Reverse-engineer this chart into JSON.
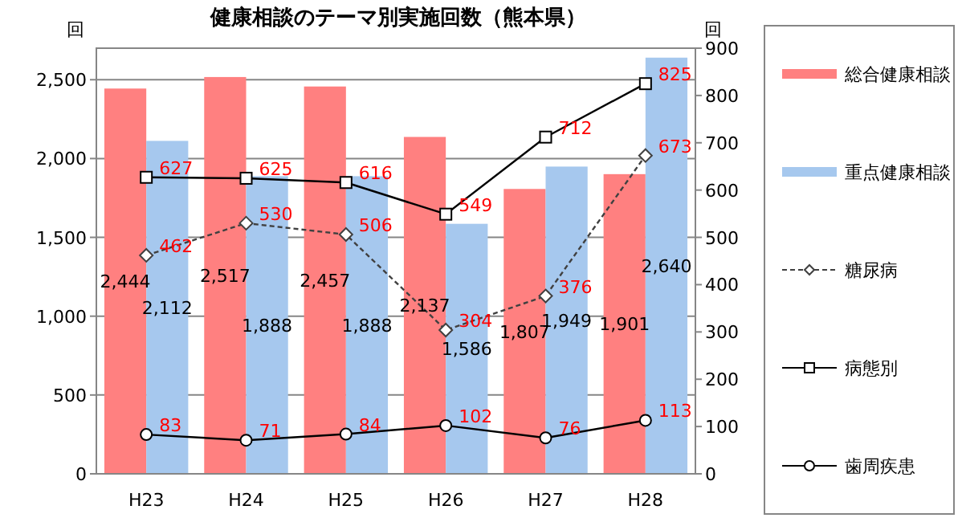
{
  "chart_data": {
    "type": "bar",
    "title": "健康相談のテーマ別実施回数（熊本県）",
    "ylabel": "回",
    "y2label": "回",
    "categories": [
      "H23",
      "H24",
      "H25",
      "H26",
      "H27",
      "H28"
    ],
    "series": [
      {
        "name": "総合健康相談",
        "color": "#ff8080",
        "values": [
          2444,
          2517,
          2457,
          2137,
          1807,
          1901
        ],
        "value_labels": [
          "2,444",
          "2,517",
          "2,457",
          "2,137",
          "1,807",
          "1,901"
        ]
      },
      {
        "name": "重点健康相談",
        "color": "#a6c8ee",
        "values": [
          2112,
          1888,
          1888,
          1586,
          1949,
          2640
        ],
        "value_labels": [
          "2,112",
          "1,888",
          "1,888",
          "1,586",
          "1,949",
          "2,640"
        ]
      },
      {
        "name": "糖尿病",
        "type": "line",
        "axis": "y2",
        "color": "#404040",
        "marker": "diamond",
        "line_style": "dashed",
        "values": [
          462,
          530,
          506,
          304,
          376,
          673
        ]
      },
      {
        "name": "病態別",
        "type": "line",
        "axis": "y2",
        "color": "#000000",
        "marker": "square",
        "line_style": "solid",
        "values": [
          627,
          625,
          616,
          549,
          712,
          825
        ]
      },
      {
        "name": "歯周疾患",
        "type": "line",
        "axis": "y2",
        "color": "#000000",
        "marker": "circle",
        "line_style": "solid",
        "values": [
          83,
          71,
          84,
          102,
          76,
          113
        ]
      }
    ],
    "ylim": [
      0,
      2700
    ],
    "yticks": [
      {
        "value": 0,
        "label": "0"
      },
      {
        "value": 500,
        "label": "500"
      },
      {
        "value": 1000,
        "label": "1,000"
      },
      {
        "value": 1500,
        "label": "1,500"
      },
      {
        "value": 2000,
        "label": "2,000"
      },
      {
        "value": 2500,
        "label": "2,500"
      }
    ],
    "y2lim": [
      0,
      900
    ],
    "y2ticks": [
      0,
      100,
      200,
      300,
      400,
      500,
      600,
      700,
      800,
      900
    ],
    "grid": "y",
    "legend": "right",
    "data_labels": true
  }
}
